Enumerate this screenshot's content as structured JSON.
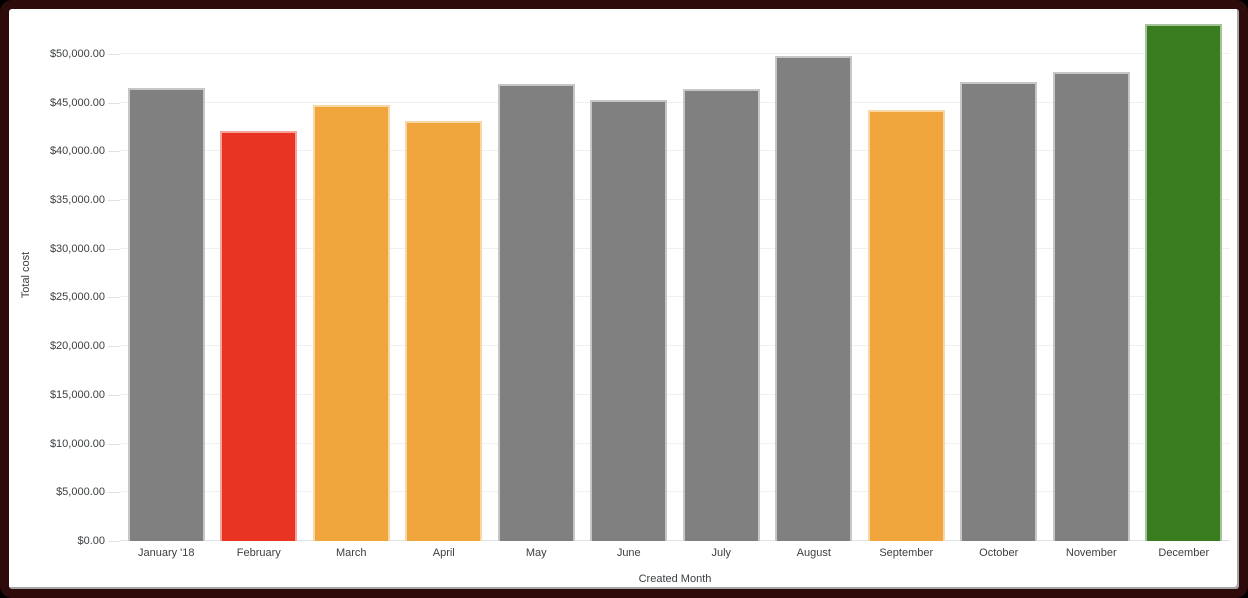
{
  "window": {
    "frame_border_color": "#2e0b0b",
    "background_color": "#ffffff"
  },
  "colors": {
    "bar_default_gray": "#808080",
    "bar_red": "#e83423",
    "bar_orange": "#f0a63c",
    "bar_green": "#3a7d21",
    "gridline": "#f0f0f0",
    "baseline": "#dfe3e8",
    "axis_text": "#3c4043"
  },
  "chart_data": {
    "type": "bar",
    "title": "",
    "xlabel": "Created Month",
    "ylabel": "Total cost",
    "categories": [
      "January '18",
      "February",
      "March",
      "April",
      "May",
      "June",
      "July",
      "August",
      "September",
      "October",
      "November",
      "December"
    ],
    "values": [
      46500,
      42100,
      44800,
      43100,
      46900,
      45300,
      46400,
      49800,
      44200,
      47100,
      48100,
      53100
    ],
    "bar_colors": [
      "#808080",
      "#e83423",
      "#f0a63c",
      "#f0a63c",
      "#808080",
      "#808080",
      "#808080",
      "#808080",
      "#f0a63c",
      "#808080",
      "#808080",
      "#3a7d21"
    ],
    "y_ticks": [
      {
        "label": "$0.00",
        "value": 0
      },
      {
        "label": "$5,000.00",
        "value": 5000
      },
      {
        "label": "$10,000.00",
        "value": 10000
      },
      {
        "label": "$15,000.00",
        "value": 15000
      },
      {
        "label": "$20,000.00",
        "value": 20000
      },
      {
        "label": "$25,000.00",
        "value": 25000
      },
      {
        "label": "$30,000.00",
        "value": 30000
      },
      {
        "label": "$35,000.00",
        "value": 35000
      },
      {
        "label": "$40,000.00",
        "value": 40000
      },
      {
        "label": "$45,000.00",
        "value": 45000
      },
      {
        "label": "$50,000.00",
        "value": 50000
      }
    ],
    "ylim": [
      0,
      54600
    ],
    "grid": true,
    "legend": "none"
  }
}
